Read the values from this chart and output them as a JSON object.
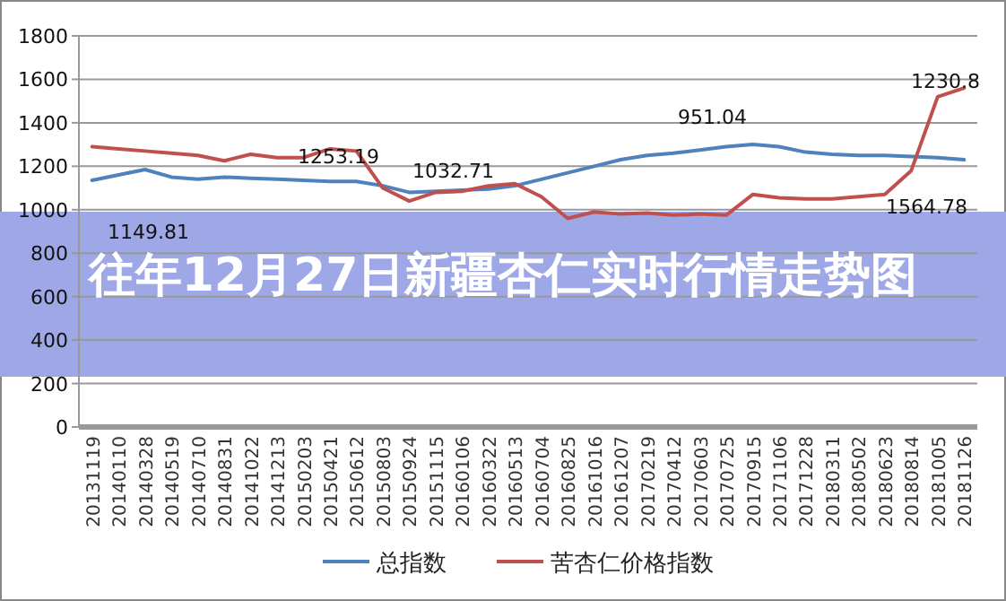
{
  "chart_data": {
    "type": "line",
    "title": "往年12月27日新疆杏仁实时行情走势图",
    "categories": [
      "20131119",
      "20140110",
      "20140328",
      "20140519",
      "20140710",
      "20140831",
      "20141022",
      "20141213",
      "20150203",
      "20150421",
      "20150612",
      "20150803",
      "20150924",
      "20151115",
      "20160106",
      "20160322",
      "20160513",
      "20160704",
      "20160825",
      "20161016",
      "20161207",
      "20170219",
      "20170412",
      "20170603",
      "20170725",
      "20170915",
      "20171106",
      "20171228",
      "20180311",
      "20180502",
      "20180623",
      "20180814",
      "20181005",
      "20181126"
    ],
    "series": [
      {
        "name": "总指数",
        "color": "#4f81bd",
        "values": [
          1135,
          1160,
          1185,
          1150,
          1140,
          1150,
          1145,
          1140,
          1135,
          1130,
          1130,
          1110,
          1080,
          1085,
          1090,
          1095,
          1110,
          1140,
          1170,
          1200,
          1230,
          1250,
          1260,
          1275,
          1290,
          1300,
          1290,
          1265,
          1255,
          1250,
          1250,
          1245,
          1240,
          1230
        ]
      },
      {
        "name": "苦杏仁价格指数",
        "color": "#c0504d",
        "values": [
          1290,
          1280,
          1270,
          1260,
          1250,
          1225,
          1255,
          1240,
          1240,
          1280,
          1270,
          1100,
          1040,
          1080,
          1085,
          1110,
          1120,
          1060,
          960,
          990,
          980,
          985,
          975,
          980,
          975,
          1070,
          1055,
          1050,
          1050,
          1060,
          1070,
          1180,
          1520,
          1560
        ]
      }
    ],
    "ylim": [
      0,
      1800
    ],
    "yticks": [
      0,
      200,
      400,
      600,
      800,
      1000,
      1200,
      1400,
      1600,
      1800
    ],
    "grid": "y",
    "legend": "bottom",
    "marker": "none",
    "line_style": "solid",
    "annotations": [
      "1149.81",
      "1253.19",
      "1032.71",
      "951.04",
      "1230.8",
      "1564.78"
    ]
  }
}
